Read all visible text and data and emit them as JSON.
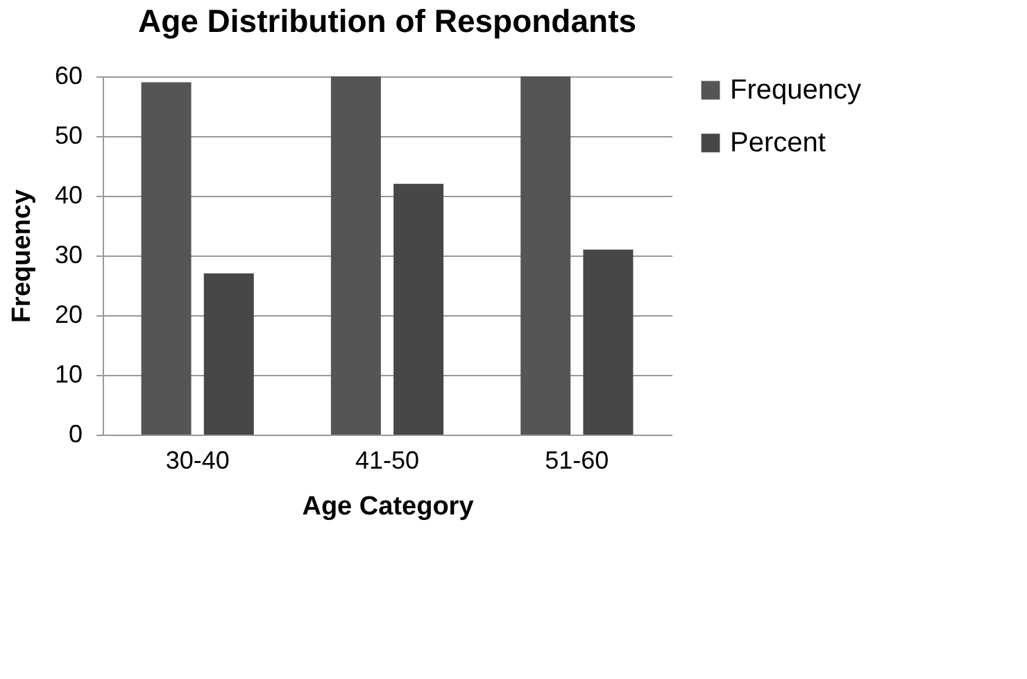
{
  "chart_data": {
    "type": "bar",
    "title": "Age Distribution of Respondants",
    "xlabel": "Age Category",
    "ylabel": "Frequency",
    "categories": [
      "30-40",
      "41-50",
      "51-60"
    ],
    "series": [
      {
        "name": "Frequency",
        "color": "#555555",
        "values": [
          59,
          60,
          60
        ]
      },
      {
        "name": "Percent",
        "color": "#474747",
        "values": [
          27,
          42,
          31
        ]
      }
    ],
    "ylim": [
      0,
      60
    ],
    "yticks": [
      0,
      10,
      20,
      30,
      40,
      50,
      60
    ],
    "grid": "y",
    "legend": "right"
  }
}
